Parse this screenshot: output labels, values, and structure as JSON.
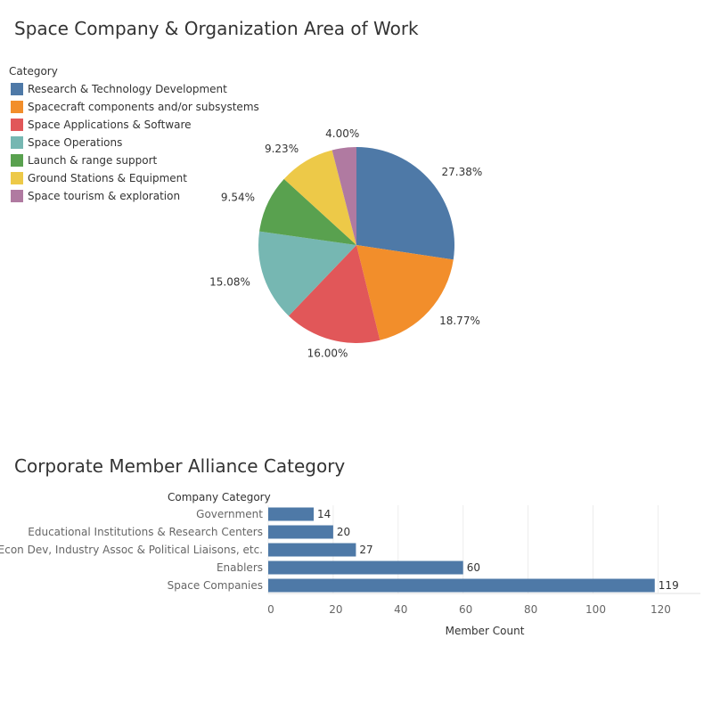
{
  "chart_data": [
    {
      "type": "pie",
      "title": "Space Company & Organization Area of Work",
      "legend_title": "Category",
      "legend_position": "top-left",
      "slices": [
        {
          "label": "Research & Technology Development",
          "value": 27.38,
          "value_label": "27.38%",
          "color": "#4e79a7"
        },
        {
          "label": "Spacecraft components and/or subsystems",
          "value": 18.77,
          "value_label": "18.77%",
          "color": "#f28e2b"
        },
        {
          "label": "Space Applications & Software",
          "value": 16.0,
          "value_label": "16.00%",
          "color": "#e15759"
        },
        {
          "label": "Space Operations",
          "value": 15.08,
          "value_label": "15.08%",
          "color": "#76b7b2"
        },
        {
          "label": "Launch & range support",
          "value": 9.54,
          "value_label": "9.54%",
          "color": "#59a14f"
        },
        {
          "label": "Ground Stations & Equipment",
          "value": 9.23,
          "value_label": "9.23%",
          "color": "#edc948"
        },
        {
          "label": "Space tourism & exploration",
          "value": 4.0,
          "value_label": "4.00%",
          "color": "#b07aa1"
        }
      ]
    },
    {
      "type": "bar",
      "orientation": "horizontal",
      "title": "Corporate Member Alliance Category",
      "ylabel": "Company Category",
      "xlabel": "Member Count",
      "bar_color": "#4e79a7",
      "categories": [
        "Government",
        "Educational Institutions & Research Centers",
        "Econ Dev, Industry Assoc & Political Liaisons, etc.",
        "Enablers",
        "Space Companies"
      ],
      "values": [
        14,
        20,
        27,
        60,
        119
      ],
      "xlim": [
        0,
        133
      ],
      "xticks": [
        0,
        20,
        40,
        60,
        80,
        100,
        120
      ],
      "grid": true
    }
  ]
}
